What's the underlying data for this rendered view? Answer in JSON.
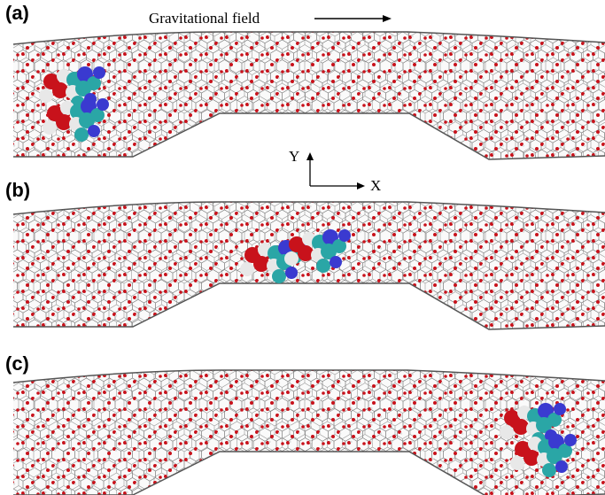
{
  "panels": [
    {
      "label": "(a)"
    },
    {
      "label": "(b)"
    },
    {
      "label": "(c)"
    }
  ],
  "annotation": "Gravitational field",
  "axes": {
    "y": "Y",
    "x": "X"
  }
}
